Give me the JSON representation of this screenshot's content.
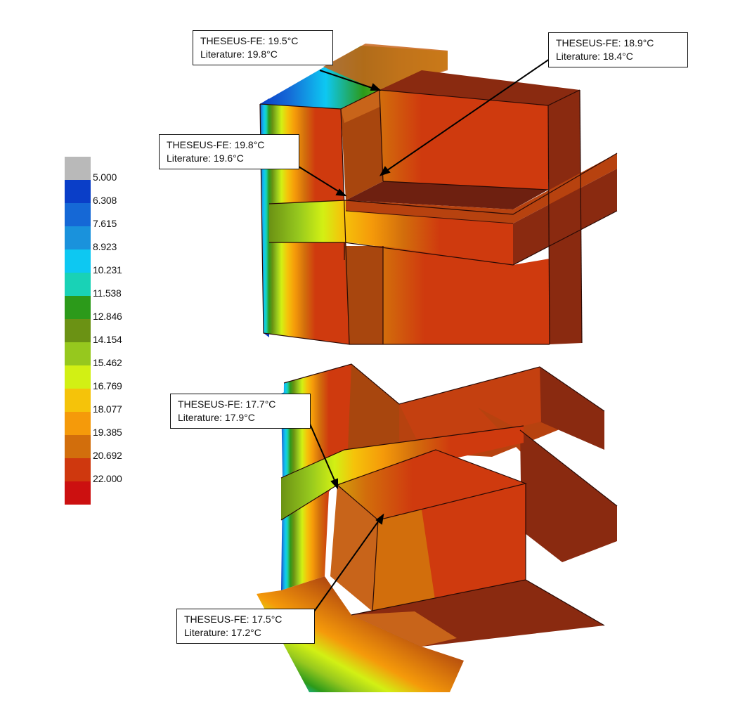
{
  "legend": {
    "values": [
      "5.000",
      "6.308",
      "7.615",
      "8.923",
      "10.231",
      "11.538",
      "12.846",
      "14.154",
      "15.462",
      "16.769",
      "18.077",
      "19.385",
      "20.692",
      "22.000"
    ],
    "colors": [
      "#b9b9b9",
      "#0a3ec8",
      "#1568d6",
      "#1a92dc",
      "#0dc8f2",
      "#19d2b6",
      "#2c9a1a",
      "#6b9214",
      "#96c81e",
      "#d2f014",
      "#f5c30a",
      "#f59a0a",
      "#d26e0c",
      "#cf380e",
      "#cc1010"
    ]
  },
  "callouts": {
    "top_left": {
      "line1": "THESEUS-FE: 19.5°C",
      "line2": "Literature: 19.8°C"
    },
    "top_right": {
      "line1": "THESEUS-FE: 18.9°C",
      "line2": "Literature: 18.4°C"
    },
    "mid_left": {
      "line1": "THESEUS-FE: 19.8°C",
      "line2": "Literature: 19.6°C"
    },
    "low_left": {
      "line1": "THESEUS-FE: 17.7°C",
      "line2": "Literature: 17.9°C"
    },
    "bottom": {
      "line1": "THESEUS-FE: 17.5°C",
      "line2": "Literature: 17.2°C"
    }
  },
  "palette": {
    "hot": "#cf3a0a",
    "warm": "#c8641a",
    "dark": "#8a2a10",
    "darker": "#6e2010"
  }
}
